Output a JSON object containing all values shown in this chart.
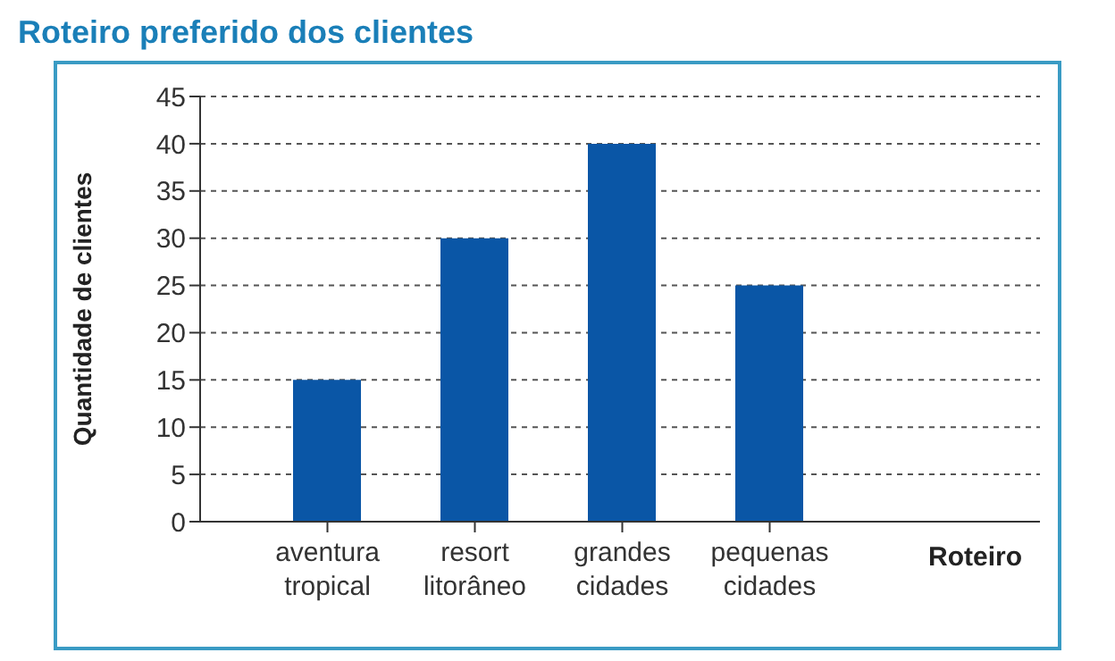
{
  "chart_data": {
    "type": "bar",
    "title": "Roteiro preferido dos clientes",
    "categories": [
      "aventura tropical",
      "resort litorâneo",
      "grandes cidades",
      "pequenas cidades"
    ],
    "values": [
      15,
      30,
      40,
      25
    ],
    "color": "#0a56a6",
    "xlabel": "Roteiro",
    "ylabel": "Quantidade de clientes",
    "ylim": [
      0,
      45
    ],
    "yticks": [
      0,
      5,
      10,
      15,
      20,
      25,
      30,
      35,
      40,
      45
    ],
    "grid": "y"
  }
}
